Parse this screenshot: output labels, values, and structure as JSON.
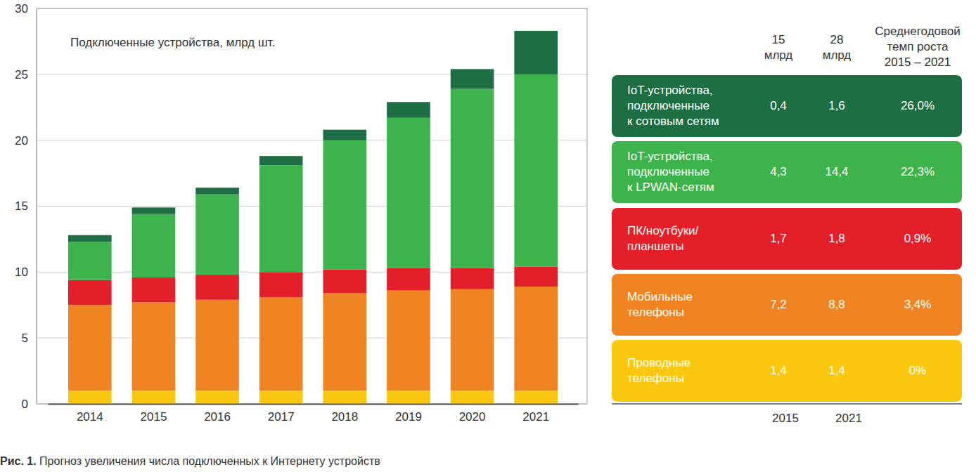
{
  "chart_data": {
    "type": "bar",
    "title": "Подключенные устройства, млрд шт.",
    "categories": [
      "2014",
      "2015",
      "2016",
      "2017",
      "2018",
      "2019",
      "2020",
      "2021"
    ],
    "series": [
      {
        "name": "Проводные\nтелефоны",
        "color": "#fcc80f",
        "values": [
          1.0,
          1.0,
          1.0,
          1.0,
          1.0,
          1.0,
          1.0,
          1.0
        ]
      },
      {
        "name": "Мобильные\nтелефоны",
        "color": "#f08423",
        "values": [
          6.5,
          6.7,
          6.9,
          7.1,
          7.4,
          7.6,
          7.7,
          7.9
        ]
      },
      {
        "name": "ПК/ноутбуки/\nпланшеты",
        "color": "#e3202a",
        "values": [
          1.9,
          1.9,
          1.9,
          1.9,
          1.8,
          1.7,
          1.6,
          1.5
        ]
      },
      {
        "name": "IoT-устройства,\nподключенные\nк LPWAN-сетям",
        "color": "#3cb44b",
        "values": [
          2.9,
          4.8,
          6.1,
          8.1,
          9.8,
          11.4,
          13.6,
          14.6
        ]
      },
      {
        "name": "IoT-устройства,\nподключенные\nк сотовым сетям",
        "color": "#1d6e42",
        "values": [
          0.5,
          0.5,
          0.5,
          0.7,
          0.8,
          1.2,
          1.5,
          3.3
        ]
      }
    ],
    "stacked": true,
    "grid": true,
    "ylim": [
      0,
      30
    ],
    "yticks": [
      0,
      5,
      10,
      15,
      20,
      25,
      30
    ]
  },
  "table": {
    "columns": [
      "15\nмлрд",
      "28\nмлрд",
      "Среднегодовой\nтемп роста\n2015 – 2021"
    ],
    "rows": [
      [
        "0,4",
        "1,6",
        "26,0%"
      ],
      [
        "4,3",
        "14,4",
        "22,3%"
      ],
      [
        "1,7",
        "1,8",
        "0,9%"
      ],
      [
        "7,2",
        "8,8",
        "3,4%"
      ],
      [
        "1,4",
        "1,4",
        "0%"
      ]
    ],
    "footer": [
      "2015",
      "2021"
    ]
  },
  "caption": {
    "label": "Рис. 1.",
    "text": "Прогноз увеличения числа подключенных к Интернету устройств"
  }
}
